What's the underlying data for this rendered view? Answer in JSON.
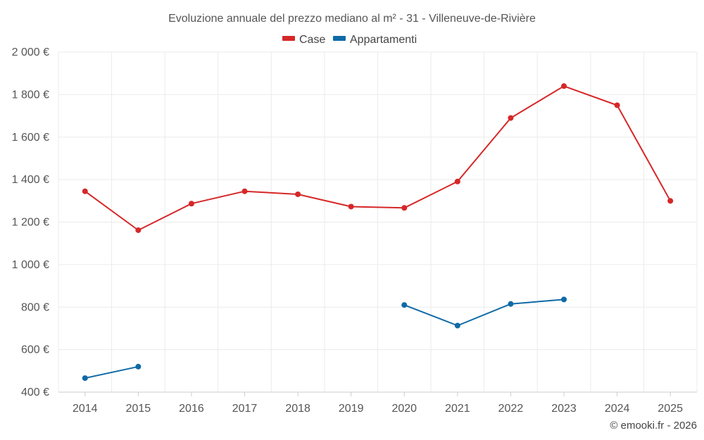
{
  "chart_data": {
    "type": "line",
    "title": "Evoluzione annuale del prezzo mediano al m² - 31 - Villeneuve-de-Rivière",
    "categories": [
      "2014",
      "2015",
      "2016",
      "2017",
      "2018",
      "2019",
      "2020",
      "2021",
      "2022",
      "2023",
      "2024",
      "2025"
    ],
    "series": [
      {
        "name": "Case",
        "color": "#d62728",
        "values": [
          1345,
          1162,
          1287,
          1345,
          1331,
          1273,
          1267,
          1391,
          1690,
          1840,
          1750,
          1300
        ]
      },
      {
        "name": "Appartamenti",
        "color": "#0f6aa6",
        "values": [
          466,
          520,
          null,
          null,
          null,
          null,
          810,
          713,
          815,
          836,
          null,
          null
        ]
      }
    ],
    "ylim": [
      400,
      2000
    ],
    "yticks": [
      400,
      600,
      800,
      1000,
      1200,
      1400,
      1600,
      1800,
      2000
    ],
    "ytick_labels": [
      "400 €",
      "600 €",
      "800 €",
      "1 000 €",
      "1 200 €",
      "1 400 €",
      "1 600 €",
      "1 800 €",
      "2 000 €"
    ],
    "xlabel": "",
    "ylabel": "",
    "grid": true,
    "legend_position": "top-center",
    "credit": "© emooki.fr - 2026"
  }
}
